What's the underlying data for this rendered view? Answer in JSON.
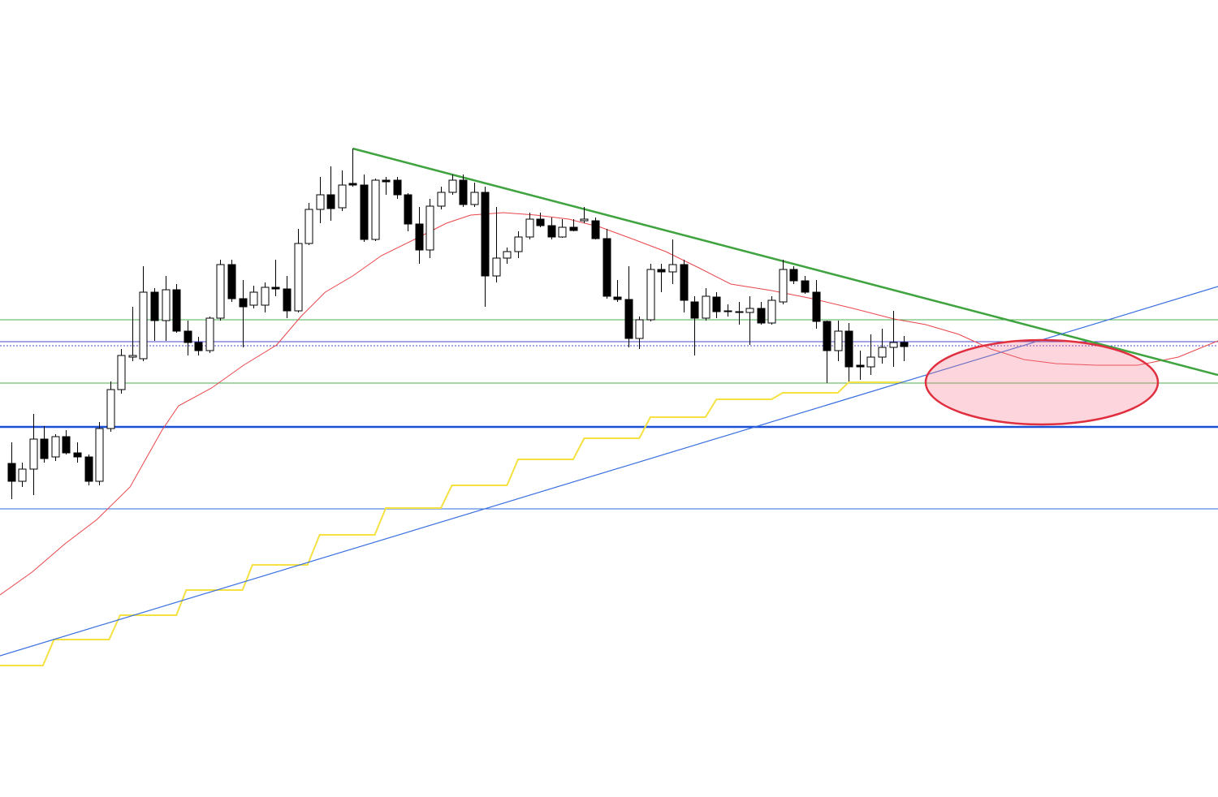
{
  "chart_data": {
    "type": "candlestick",
    "xlim": [
      -1,
      109.5
    ],
    "ylim": [
      0,
      982
    ],
    "up_color": "#ffffff",
    "down_color": "#000000",
    "open": [
      411,
      389,
      404,
      441,
      419,
      444,
      424,
      419,
      389,
      454,
      502,
      542,
      540,
      622,
      587,
      625,
      574,
      560,
      550,
      590,
      656,
      614,
      606,
      606,
      628,
      626,
      599,
      682,
      724,
      742,
      726,
      756,
      754,
      687,
      760,
      760,
      742,
      706,
      674,
      728,
      745,
      760,
      730,
      745,
      642,
      664,
      672,
      690,
      712,
      704,
      690,
      702,
      710,
      710,
      688,
      616,
      613,
      565,
      588,
      650,
      647,
      656,
      610,
      590,
      616,
      599,
      598,
      597,
      602,
      584,
      610,
      650,
      636,
      622,
      586,
      550,
      574,
      532,
      530,
      542,
      554,
      560
    ],
    "high": [
      437,
      412,
      472,
      457,
      447,
      452,
      437,
      422,
      462,
      512,
      552,
      604,
      654,
      627,
      642,
      632,
      587,
      567,
      592,
      662,
      662,
      637,
      630,
      634,
      662,
      642,
      700,
      732,
      764,
      777,
      772,
      799,
      767,
      762,
      764,
      764,
      744,
      727,
      737,
      752,
      767,
      767,
      757,
      752,
      727,
      677,
      697,
      720,
      720,
      714,
      712,
      712,
      727,
      714,
      700,
      637,
      654,
      592,
      657,
      657,
      687,
      662,
      617,
      627,
      622,
      607,
      610,
      617,
      610,
      617,
      662,
      654,
      642,
      637,
      587,
      587,
      584,
      550,
      570,
      577,
      599,
      568
    ],
    "low": [
      367,
      382,
      372,
      412,
      414,
      422,
      412,
      384,
      384,
      450,
      497,
      537,
      537,
      562,
      562,
      572,
      544,
      544,
      547,
      587,
      610,
      554,
      602,
      597,
      617,
      590,
      597,
      680,
      707,
      710,
      722,
      752,
      684,
      685,
      742,
      737,
      697,
      657,
      664,
      724,
      742,
      727,
      727,
      604,
      634,
      657,
      664,
      687,
      702,
      687,
      689,
      697,
      707,
      687,
      614,
      610,
      554,
      552,
      586,
      622,
      632,
      597,
      544,
      587,
      590,
      592,
      582,
      557,
      582,
      582,
      607,
      632,
      620,
      577,
      510,
      537,
      512,
      514,
      520,
      534,
      530,
      537
    ],
    "close": [
      389,
      404,
      441,
      417,
      444,
      424,
      419,
      389,
      454,
      502,
      544,
      544,
      622,
      587,
      625,
      574,
      560,
      550,
      590,
      656,
      614,
      604,
      622,
      628,
      626,
      599,
      682,
      724,
      742,
      725,
      754,
      754,
      687,
      760,
      758,
      742,
      706,
      674,
      728,
      745,
      760,
      730,
      745,
      642,
      664,
      672,
      690,
      712,
      704,
      690,
      702,
      698,
      712,
      688,
      617,
      613,
      565,
      588,
      650,
      647,
      656,
      612,
      590,
      617,
      598,
      598,
      597,
      602,
      584,
      612,
      650,
      636,
      622,
      586,
      550,
      574,
      530,
      530,
      542,
      554,
      560,
      555
    ],
    "levels": [
      {
        "value": 588,
        "color": "#4caf50"
      },
      {
        "value": 510,
        "color": "#4caf50"
      },
      {
        "value": 561,
        "color": "#4a4acf"
      },
      {
        "value": 556,
        "color": "#4a4acf"
      },
      {
        "value": 456,
        "color": "#1a4fd6"
      },
      {
        "value": 355,
        "color": "#2f6ee0"
      }
    ],
    "trendlines": [
      {
        "color": "#3fa33f",
        "x": [
          31,
          109.5
        ],
        "values": [
          799,
          520
        ]
      },
      {
        "color": "#3a6fe0",
        "x": [
          -1,
          109.5
        ],
        "values": [
          174,
          629
        ]
      }
    ],
    "moving_average": {
      "color": "#e8454a",
      "x": [
        -1,
        1.9,
        4.9,
        7.8,
        10.8,
        13.7,
        15.2,
        18.2,
        21.1,
        24.1,
        26.3,
        28.5,
        31,
        33.6,
        36.6,
        39.5,
        41.7,
        44.7,
        47.6,
        50.6,
        53.5,
        56.5,
        59.4,
        62.4,
        65.3,
        69,
        72.7,
        76.4,
        80.1,
        83,
        86,
        88.9,
        91.9,
        94.8,
        98.5,
        102.2,
        105.9,
        109.5
      ],
      "values": [
        249,
        277,
        312,
        342,
        382,
        452,
        482,
        504,
        532,
        557,
        592,
        622,
        642,
        667,
        687,
        707,
        717,
        720,
        717,
        712,
        702,
        687,
        672,
        652,
        632,
        624,
        614,
        602,
        589,
        582,
        570,
        552,
        539,
        534,
        532,
        532,
        542,
        562
      ]
    },
    "step_line": {
      "color": "#f5e142",
      "x": [
        -1,
        2.9,
        3.9,
        8.9,
        9.9,
        15,
        15.9,
        21,
        21.9,
        26.9,
        28,
        33,
        34,
        39,
        40,
        45,
        46,
        51,
        52,
        57,
        58,
        63,
        64,
        69,
        70,
        75,
        76,
        81
      ],
      "values": [
        162,
        162,
        194,
        194,
        224,
        224,
        255,
        255,
        286,
        286,
        323,
        323,
        356,
        356,
        384,
        384,
        416,
        416,
        442,
        442,
        468,
        468,
        490,
        490,
        498,
        498,
        511,
        511
      ]
    }
  }
}
